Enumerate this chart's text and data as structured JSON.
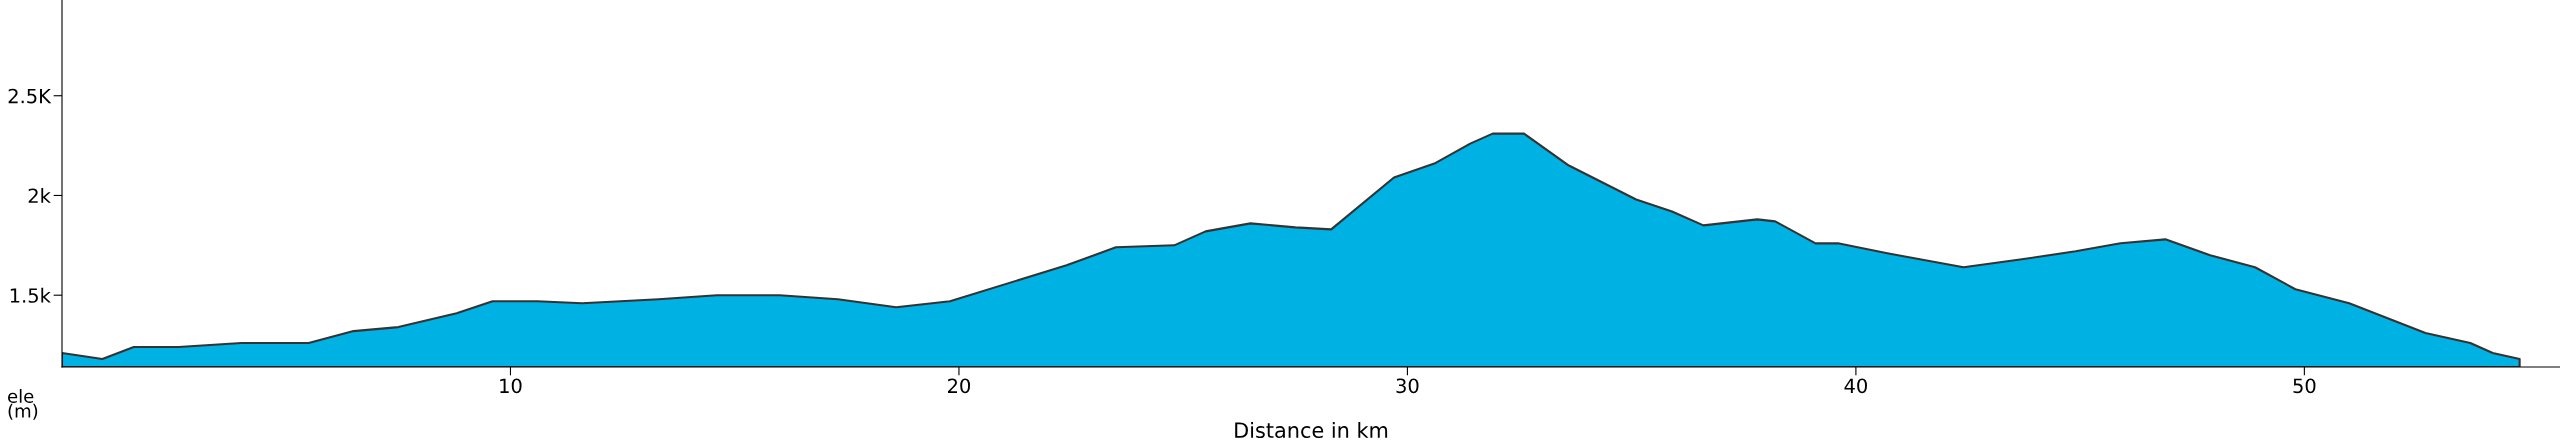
{
  "chart_data": {
    "type": "area",
    "xlabel": "Distance in km",
    "ylabel": "ele\n(m)",
    "x": [
      0,
      0.9,
      1.6,
      2.6,
      4.0,
      5.5,
      6.5,
      7.5,
      8.8,
      9.6,
      10.6,
      11.6,
      13.3,
      14.6,
      16.0,
      17.3,
      18.6,
      19.8,
      22.4,
      23.5,
      24.8,
      25.5,
      26.5,
      27.5,
      28.3,
      29.7,
      30.6,
      31.4,
      31.9,
      32.6,
      33.6,
      35.1,
      35.9,
      36.6,
      37.8,
      38.2,
      39.1,
      39.6,
      40.7,
      42.4,
      43.7,
      44.9,
      45.9,
      46.9,
      47.9,
      48.9,
      49.8,
      51.0,
      52.7,
      53.7,
      54.2,
      54.8
    ],
    "series": [
      {
        "color": "#00b2e3",
        "values": [
          1210,
          1180,
          1240,
          1240,
          1260,
          1260,
          1320,
          1340,
          1410,
          1470,
          1470,
          1460,
          1480,
          1500,
          1500,
          1480,
          1440,
          1470,
          1650,
          1740,
          1750,
          1820,
          1860,
          1840,
          1830,
          2090,
          2160,
          2260,
          2310,
          2310,
          2150,
          1980,
          1920,
          1850,
          1880,
          1870,
          1760,
          1760,
          1710,
          1640,
          1680,
          1720,
          1760,
          1780,
          1700,
          1640,
          1530,
          1460,
          1310,
          1260,
          1210,
          1180
        ]
      }
    ],
    "xlim": [
      0,
      55.7
    ],
    "ylim": [
      1140,
      2980
    ],
    "xticks": [
      10,
      20,
      30,
      40,
      50
    ],
    "yticks": [
      {
        "value": 1500,
        "label": "1.5k"
      },
      {
        "value": 2000,
        "label": "2k"
      },
      {
        "value": 2500,
        "label": "2.5K"
      }
    ],
    "grid": false,
    "legend": false
  }
}
